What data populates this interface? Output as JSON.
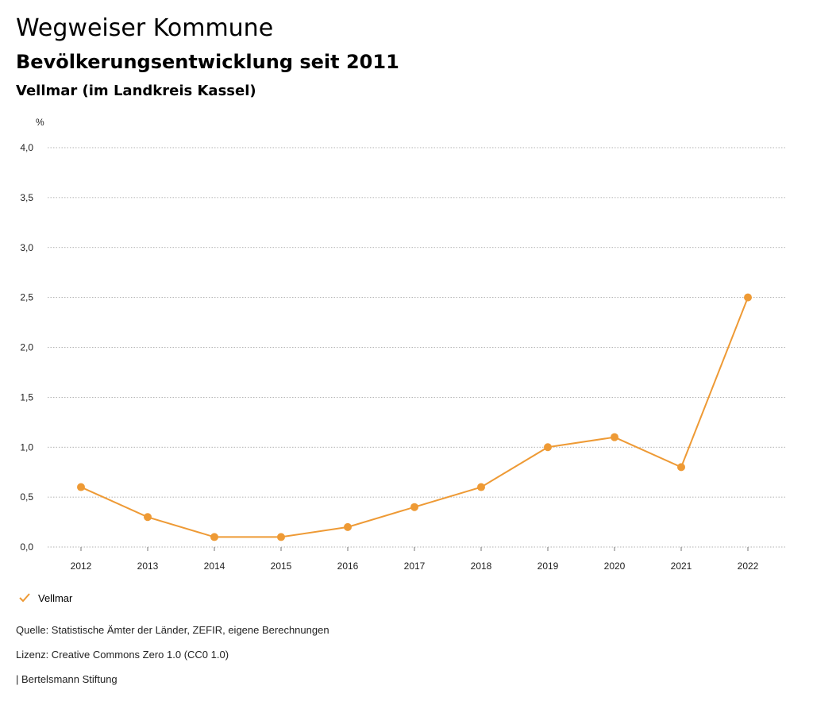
{
  "header": {
    "title": "Wegweiser Kommune",
    "subtitle": "Bevölkerungsentwicklung seit 2011",
    "place": "Vellmar (im Landkreis Kassel)"
  },
  "legend": {
    "label": "Vellmar"
  },
  "footer": {
    "source": "Quelle: Statistische Ämter der Länder, ZEFIR, eigene Berechnungen",
    "license": "Lizenz: Creative Commons Zero 1.0 (CC0 1.0)",
    "publisher": "| Bertelsmann Stiftung"
  },
  "colors": {
    "series": "#ee9a35",
    "grid": "#999999"
  },
  "chart_data": {
    "type": "line",
    "title": "Bevölkerungsentwicklung seit 2011",
    "ylabel": "%",
    "xlabel": "",
    "ylim": [
      0,
      4
    ],
    "yticks": [
      "0,0",
      "0,5",
      "1,0",
      "1,5",
      "2,0",
      "2,5",
      "3,0",
      "3,5",
      "4,0"
    ],
    "categories": [
      "2012",
      "2013",
      "2014",
      "2015",
      "2016",
      "2017",
      "2018",
      "2019",
      "2020",
      "2021",
      "2022"
    ],
    "series": [
      {
        "name": "Vellmar",
        "values": [
          0.6,
          0.3,
          0.1,
          0.1,
          0.2,
          0.4,
          0.6,
          1.0,
          1.1,
          0.8,
          2.5
        ]
      }
    ],
    "grid": true,
    "legend_position": "bottom-left"
  }
}
